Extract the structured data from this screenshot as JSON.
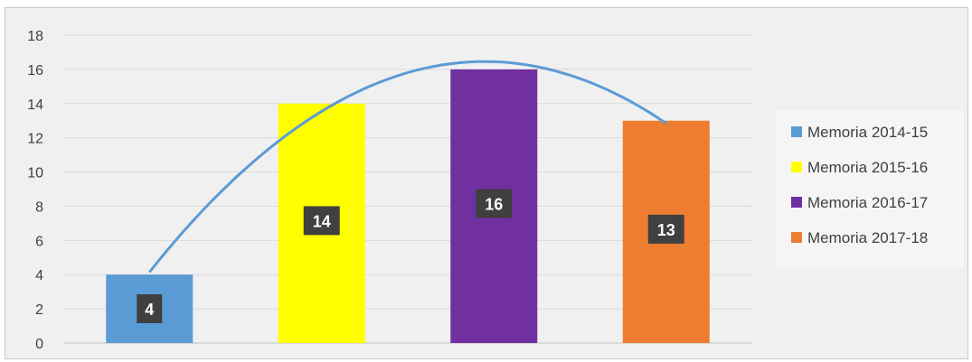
{
  "chart_data": {
    "type": "bar",
    "title": "",
    "xlabel": "",
    "ylabel": "",
    "ylim": [
      0,
      18
    ],
    "yticks": [
      0,
      2,
      4,
      6,
      8,
      10,
      12,
      14,
      16,
      18
    ],
    "grid": true,
    "legend_position": "right",
    "categories": [
      "Memoria 2014-15",
      "Memoria 2015-16",
      "Memoria 2016-17",
      "Memoria 2017-18"
    ],
    "values": [
      4,
      14,
      16,
      13
    ],
    "data_labels": [
      "4",
      "14",
      "16",
      "13"
    ],
    "colors": [
      "#5b9bd5",
      "#ffff00",
      "#7030a0",
      "#ed7d31"
    ],
    "trendline": {
      "type": "polynomial",
      "color": "#5b9bd5"
    }
  }
}
